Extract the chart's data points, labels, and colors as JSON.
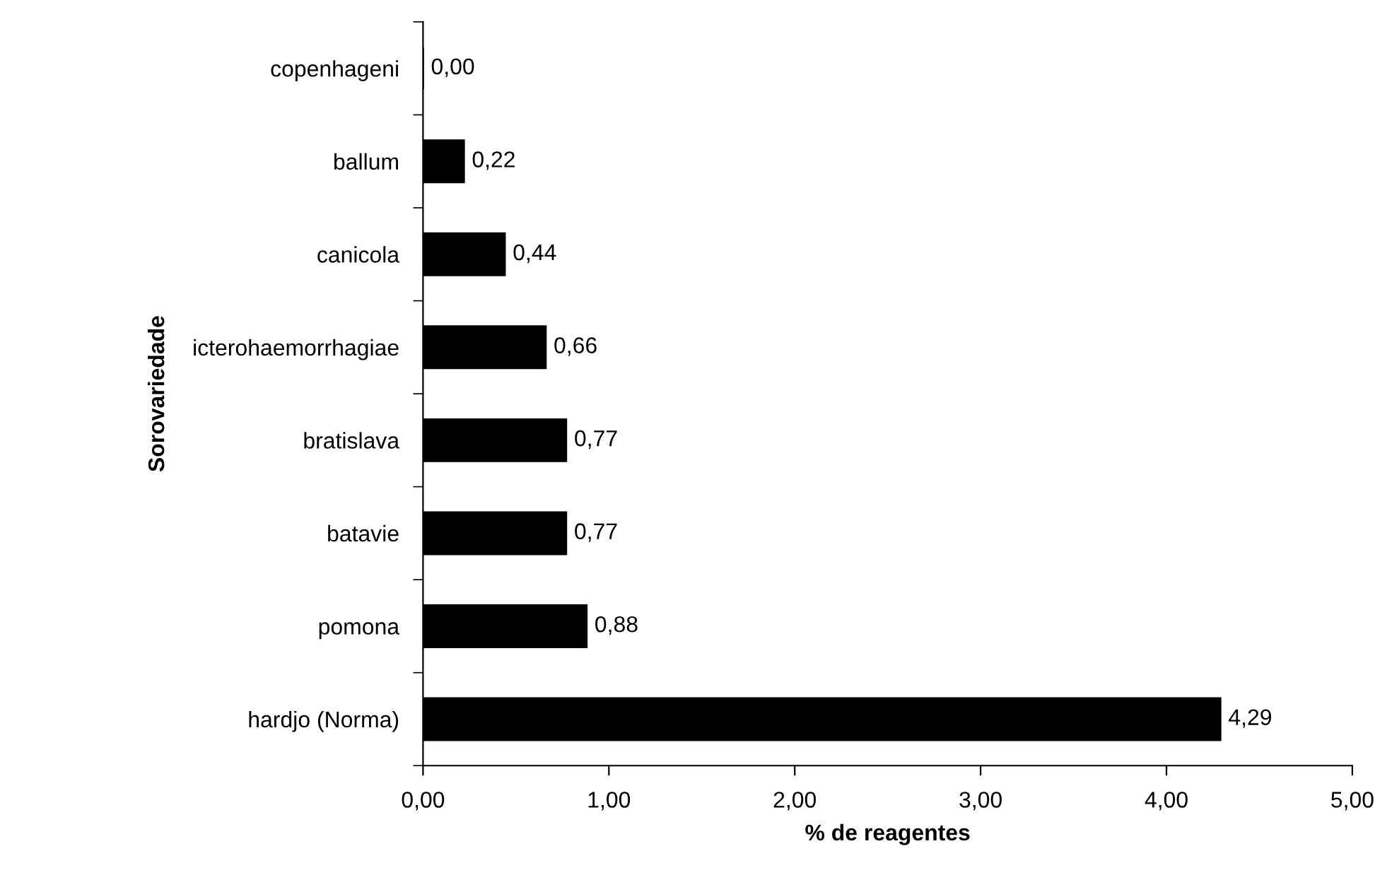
{
  "chart_data": {
    "type": "bar",
    "orientation": "horizontal",
    "categories": [
      "copenhageni",
      "ballum",
      "canicola",
      "icterohaemorrhagiae",
      "bratislava",
      "batavie",
      "pomona",
      "hardjo (Norma)"
    ],
    "values": [
      0.0,
      0.22,
      0.44,
      0.66,
      0.77,
      0.77,
      0.88,
      4.29
    ],
    "value_labels": [
      "0,00",
      "0,22",
      "0,44",
      "0,66",
      "0,77",
      "0,77",
      "0,88",
      "4,29"
    ],
    "color": "#000000",
    "xlabel": "% de reagentes",
    "ylabel": "Sorovariedade",
    "xlim": [
      0,
      5
    ],
    "xticks": [
      {
        "value": 0,
        "label": "0,00"
      },
      {
        "value": 1,
        "label": "1,00"
      },
      {
        "value": 2,
        "label": "2,00"
      },
      {
        "value": 3,
        "label": "3,00"
      },
      {
        "value": 4,
        "label": "4,00"
      },
      {
        "value": 5,
        "label": "5,00"
      }
    ],
    "grid": false,
    "legend": false
  }
}
